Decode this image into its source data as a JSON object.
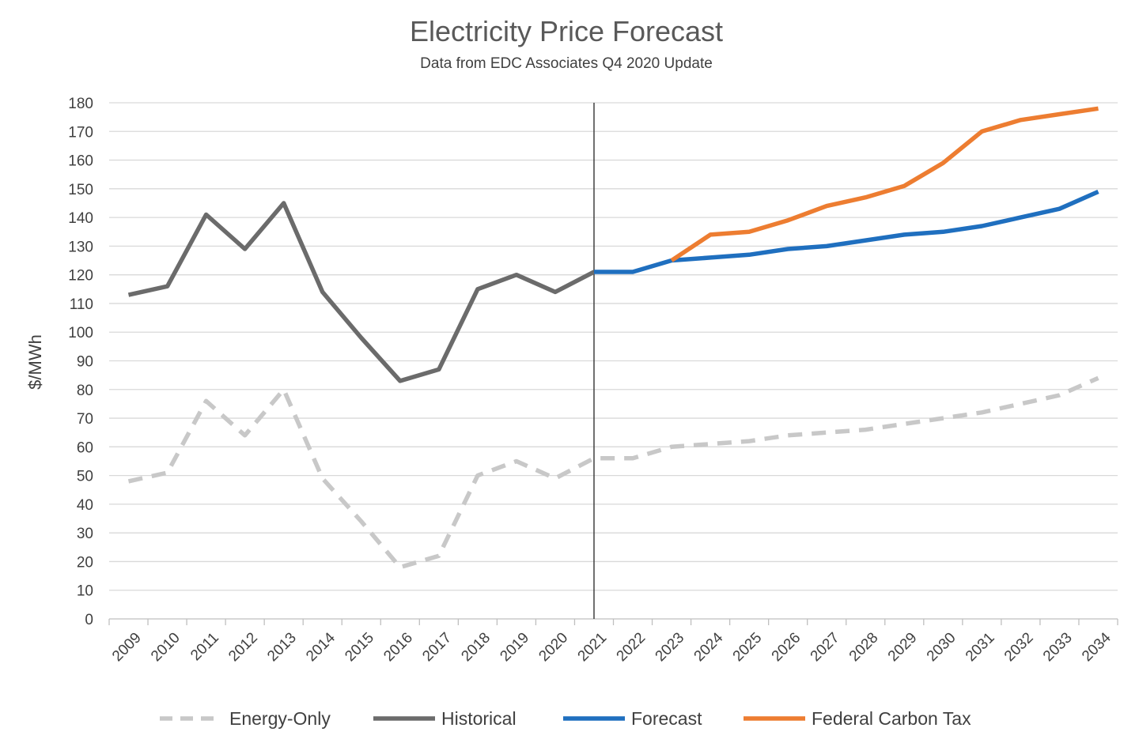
{
  "chart_data": {
    "type": "line",
    "title": "Electricity Price Forecast",
    "subtitle": "Data from EDC Associates Q4 2020 Update",
    "ylabel": "$/MWh",
    "xlabel": "",
    "ylim": [
      0,
      180
    ],
    "ytick_step": 10,
    "grid": true,
    "legend_position": "bottom",
    "divider_at": "2021",
    "categories": [
      "2009",
      "2010",
      "2011",
      "2012",
      "2013",
      "2014",
      "2015",
      "2016",
      "2017",
      "2018",
      "2019",
      "2020",
      "2021",
      "2022",
      "2023",
      "2024",
      "2025",
      "2026",
      "2027",
      "2028",
      "2029",
      "2030",
      "2031",
      "2032",
      "2033",
      "2034"
    ],
    "series": [
      {
        "name": "Energy-Only",
        "color": "#c8c8c8",
        "dashed": true,
        "values": [
          48,
          51,
          76,
          64,
          80,
          49,
          34,
          18,
          22,
          50,
          55,
          49,
          56,
          56,
          60,
          61,
          62,
          64,
          65,
          66,
          68,
          70,
          72,
          75,
          78,
          84
        ]
      },
      {
        "name": "Historical",
        "color": "#6b6b6b",
        "dashed": false,
        "values": [
          113,
          116,
          141,
          129,
          145,
          114,
          98,
          83,
          87,
          115,
          120,
          114,
          121,
          null,
          null,
          null,
          null,
          null,
          null,
          null,
          null,
          null,
          null,
          null,
          null,
          null
        ]
      },
      {
        "name": "Forecast",
        "color": "#1f6fbf",
        "dashed": false,
        "values": [
          null,
          null,
          null,
          null,
          null,
          null,
          null,
          null,
          null,
          null,
          null,
          null,
          121,
          121,
          125,
          126,
          127,
          129,
          130,
          132,
          134,
          135,
          137,
          140,
          143,
          149
        ]
      },
      {
        "name": "Federal Carbon Tax",
        "color": "#ed7d31",
        "dashed": false,
        "values": [
          null,
          null,
          null,
          null,
          null,
          null,
          null,
          null,
          null,
          null,
          null,
          null,
          null,
          null,
          125,
          134,
          135,
          139,
          144,
          147,
          151,
          159,
          170,
          174,
          176,
          178
        ]
      }
    ]
  }
}
